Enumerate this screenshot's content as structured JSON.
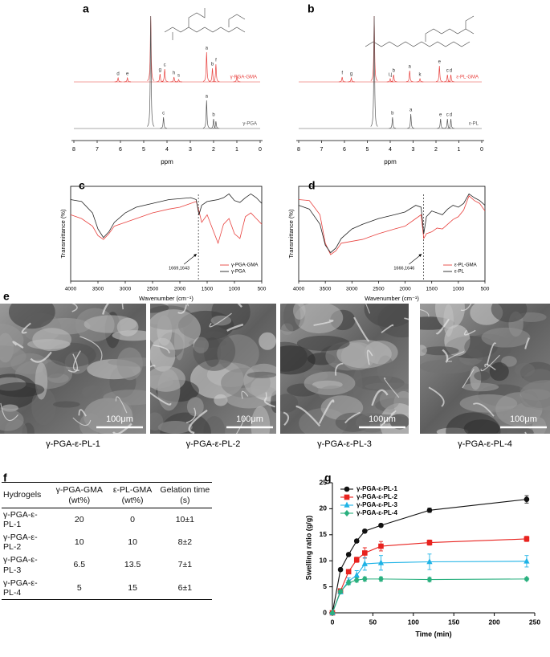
{
  "chart_data": [
    {
      "type": "nmr",
      "panel": "a",
      "xlim": [
        8,
        0
      ],
      "xticks": [
        8,
        7,
        6,
        5,
        4,
        3,
        2,
        1,
        0
      ],
      "xlabel": "ppm",
      "series": [
        {
          "name": "γ-PGA-GMA",
          "color": "#e8423f",
          "x": [
            6.1,
            5.7,
            4.7,
            4.3,
            4.1,
            3.7,
            3.5,
            2.3,
            2.05,
            1.9,
            1.0
          ],
          "values": [
            5,
            5,
            82,
            10,
            16,
            6,
            3,
            37,
            17,
            22,
            7
          ],
          "peak_labels": [
            "d",
            "e",
            null,
            "g",
            "c",
            "h",
            "s",
            "a",
            "b",
            "f",
            null
          ]
        },
        {
          "name": "γ-PGA",
          "color": "#555555",
          "x": [
            4.7,
            4.15,
            2.3,
            2.0,
            1.9
          ],
          "values": [
            140,
            14,
            35,
            12,
            9
          ],
          "peak_labels": [
            null,
            "c",
            "a",
            "b",
            null
          ]
        }
      ]
    },
    {
      "type": "nmr",
      "panel": "b",
      "xlim": [
        8,
        0
      ],
      "xticks": [
        8,
        7,
        6,
        5,
        4,
        3,
        2,
        1,
        0
      ],
      "xlabel": "ppm",
      "series": [
        {
          "name": "ε-PL-GMA",
          "color": "#e8423f",
          "x": [
            6.1,
            5.7,
            4.7,
            4.0,
            3.85,
            3.15,
            2.7,
            1.85,
            1.5,
            1.35
          ],
          "values": [
            6,
            5,
            82,
            4,
            9,
            14,
            4,
            20,
            9,
            9
          ],
          "peak_labels": [
            "f",
            "g",
            null,
            "i,j",
            "b",
            "a",
            "k",
            "e",
            "c",
            "d"
          ]
        },
        {
          "name": "ε-PL",
          "color": "#555555",
          "x": [
            4.7,
            3.9,
            3.1,
            1.8,
            1.5,
            1.35
          ],
          "values": [
            140,
            14,
            18,
            12,
            12,
            12
          ],
          "peak_labels": [
            null,
            "b",
            "a",
            "e",
            "c",
            "d"
          ]
        }
      ]
    },
    {
      "type": "ftir",
      "panel": "c",
      "xlim": [
        4000,
        500
      ],
      "xticks": [
        4000,
        3500,
        3000,
        2500,
        2000,
        1500,
        1000,
        500
      ],
      "ylim": [
        0,
        100
      ],
      "xlabel": "Wavenumber (cm⁻¹)",
      "ylabel": "Transmittance (%)",
      "marker_x": 1660,
      "annotation": "1669,1643",
      "legend": "lower right",
      "x": [
        4000,
        3800,
        3600,
        3500,
        3400,
        3300,
        3200,
        3000,
        2800,
        2500,
        2200,
        2000,
        1800,
        1700,
        1650,
        1600,
        1500,
        1400,
        1300,
        1200,
        1100,
        1000,
        900,
        800,
        700,
        600,
        500
      ],
      "series": [
        {
          "name": "γ-PGA-GMA",
          "color": "#e8423f",
          "values": [
            70,
            66,
            58,
            48,
            44,
            50,
            58,
            62,
            66,
            72,
            76,
            78,
            82,
            84,
            74,
            62,
            70,
            55,
            40,
            60,
            66,
            50,
            45,
            68,
            72,
            66,
            60
          ]
        },
        {
          "name": "γ-PGA",
          "color": "#222222",
          "values": [
            86,
            84,
            72,
            55,
            46,
            52,
            62,
            72,
            78,
            82,
            86,
            87,
            88,
            86,
            70,
            80,
            84,
            85,
            86,
            88,
            92,
            85,
            83,
            88,
            92,
            88,
            82
          ]
        }
      ]
    },
    {
      "type": "ftir",
      "panel": "d",
      "xlim": [
        4000,
        500
      ],
      "xticks": [
        4000,
        3500,
        3000,
        2500,
        2000,
        1500,
        1000,
        500
      ],
      "ylim": [
        0,
        100
      ],
      "xlabel": "Wavenumber (cm⁻¹)",
      "ylabel": "Transmittance (%)",
      "marker_x": 1656,
      "annotation": "1666,1646",
      "legend": "lower right",
      "x": [
        4000,
        3800,
        3600,
        3500,
        3400,
        3300,
        3200,
        3000,
        2800,
        2500,
        2200,
        2000,
        1800,
        1700,
        1650,
        1600,
        1500,
        1400,
        1300,
        1200,
        1100,
        1000,
        900,
        800,
        700,
        600,
        500
      ],
      "series": [
        {
          "name": "ε-PL-GMA",
          "color": "#e8423f",
          "values": [
            86,
            85,
            70,
            40,
            28,
            32,
            40,
            42,
            44,
            50,
            55,
            58,
            66,
            70,
            45,
            50,
            52,
            56,
            55,
            60,
            65,
            68,
            75,
            90,
            85,
            82,
            74
          ]
        },
        {
          "name": "ε-PL",
          "color": "#222222",
          "values": [
            80,
            76,
            60,
            38,
            30,
            35,
            45,
            55,
            60,
            66,
            70,
            73,
            80,
            78,
            50,
            68,
            74,
            72,
            70,
            76,
            80,
            78,
            82,
            92,
            88,
            85,
            80
          ]
        }
      ]
    },
    {
      "type": "line",
      "panel": "g",
      "xlim": [
        0,
        250
      ],
      "xticks": [
        0,
        50,
        100,
        150,
        200,
        250
      ],
      "ylim": [
        0,
        25
      ],
      "yticks": [
        0,
        5,
        10,
        15,
        20,
        25
      ],
      "xlabel": "Time (min)",
      "ylabel": "Swelling ratio (g/g)",
      "legend": "upper left",
      "x": [
        0,
        10,
        20,
        30,
        40,
        60,
        120,
        240
      ],
      "series": [
        {
          "name": "γ-PGA-ε-PL-1",
          "color": "#111111",
          "marker": "circle",
          "values": [
            0,
            8.3,
            11.2,
            13.8,
            15.7,
            16.8,
            19.7,
            21.8
          ],
          "errors": [
            0,
            0.3,
            0.3,
            0.3,
            0.3,
            0.3,
            0.4,
            0.7
          ]
        },
        {
          "name": "γ-PGA-ε-PL-2",
          "color": "#e8231f",
          "marker": "square",
          "values": [
            0,
            4.2,
            7.9,
            10.2,
            11.5,
            12.8,
            13.5,
            14.2
          ],
          "errors": [
            0,
            0.3,
            0.4,
            0.5,
            1.0,
            0.9,
            0.5,
            0.5
          ]
        },
        {
          "name": "γ-PGA-ε-PL-3",
          "color": "#1fb3e6",
          "marker": "triangle",
          "values": [
            0,
            4.0,
            6.1,
            7.2,
            9.4,
            9.6,
            9.8,
            9.9
          ],
          "errors": [
            0,
            0.3,
            0.6,
            0.9,
            1.2,
            1.4,
            1.5,
            1.1
          ]
        },
        {
          "name": "γ-PGA-ε-PL-4",
          "color": "#2ab07f",
          "marker": "diamond",
          "values": [
            0,
            4.1,
            5.8,
            6.3,
            6.5,
            6.5,
            6.4,
            6.5
          ],
          "errors": [
            0,
            0.3,
            0.4,
            0.4,
            0.4,
            0.4,
            0.4,
            0.3
          ]
        }
      ]
    }
  ],
  "images": {
    "panel": "e",
    "items": [
      {
        "caption": "γ-PGA-ε-PL-1",
        "scale_bar": "100μm"
      },
      {
        "caption": "γ-PGA-ε-PL-2",
        "scale_bar": "100μm"
      },
      {
        "caption": "γ-PGA-ε-PL-3",
        "scale_bar": "100μm"
      },
      {
        "caption": "γ-PGA-ε-PL-4",
        "scale_bar": "100μm"
      }
    ]
  },
  "table": {
    "panel": "f",
    "header": [
      "Hydrogels",
      "γ-PGA-GMA (wt%)",
      "ε-PL-GMA (wt%)",
      "Gelation time (s)"
    ],
    "rows": [
      [
        "γ-PGA-ε-PL-1",
        20,
        0,
        "10±1"
      ],
      [
        "γ-PGA-ε-PL-2",
        10,
        10,
        "8±2"
      ],
      [
        "γ-PGA-ε-PL-3",
        6.5,
        13.5,
        "7±1"
      ],
      [
        "γ-PGA-ε-PL-4",
        5,
        15,
        "6±1"
      ]
    ]
  }
}
